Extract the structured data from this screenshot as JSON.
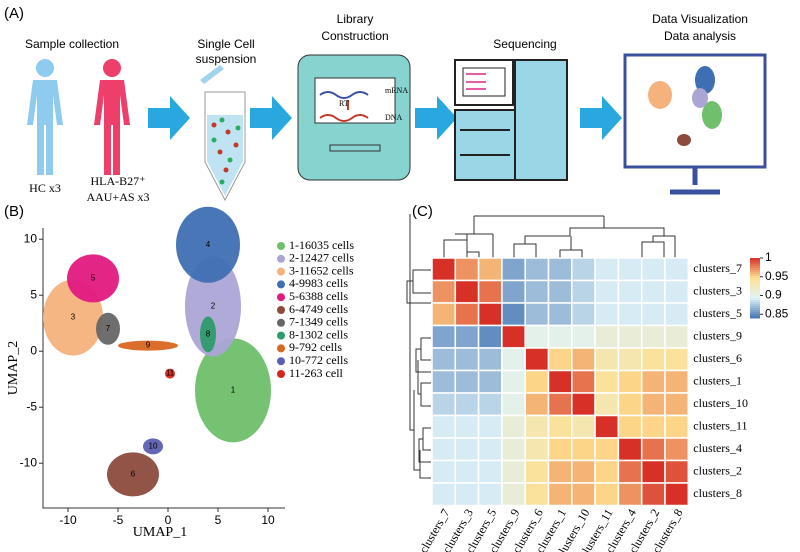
{
  "panel_labels": [
    "(A)",
    "(B)",
    "(C)"
  ],
  "workflow": {
    "sample": {
      "title": "Sample collection",
      "hc": "HC x3",
      "patient": [
        "HLA-B27⁺",
        "AAU+AS x3"
      ]
    },
    "suspension": [
      "Single Cell",
      "suspension"
    ],
    "library": {
      "title": [
        "Library",
        "Construction"
      ],
      "mrna": "mRNA",
      "rt": "RT",
      "dna": "DNA"
    },
    "sequencing": "Sequencing",
    "analysis": [
      "Data Visualization",
      "Data analysis"
    ]
  },
  "chart_data": [
    {
      "type": "scatter",
      "xlabel": "UMAP_1",
      "ylabel": "UMAP_2",
      "xlim": [
        -12.5,
        11.7
      ],
      "ylim": [
        -14,
        11
      ],
      "xticks": [
        -10,
        -5,
        0,
        5,
        10
      ],
      "yticks": [
        10,
        5,
        0,
        -5,
        -10
      ],
      "clusters": [
        {
          "name": "1-16035 cells",
          "label": "1",
          "color": "#6fbf6c",
          "x": 6.5,
          "y": -3.5
        },
        {
          "name": "2-12427 cells",
          "label": "2",
          "color": "#aba5d6",
          "x": 4.5,
          "y": 4
        },
        {
          "name": "3-11652 cells",
          "label": "3",
          "color": "#f5b27c",
          "x": -9.5,
          "y": 3
        },
        {
          "name": "4-9983 cells",
          "label": "4",
          "color": "#3f6fb2",
          "x": 4,
          "y": 9.5
        },
        {
          "name": "5-6388 cells",
          "label": "5",
          "color": "#e2197f",
          "x": -7.5,
          "y": 6.5
        },
        {
          "name": "6-4749 cells",
          "label": "6",
          "color": "#8c4b3d",
          "x": -3.5,
          "y": -11
        },
        {
          "name": "7-1349 cells",
          "label": "7",
          "color": "#666666",
          "x": -6,
          "y": 2
        },
        {
          "name": "8-1302 cells",
          "label": "8",
          "color": "#2f9a6b",
          "x": 4,
          "y": 1.5
        },
        {
          "name": "9-792 cells",
          "label": "9",
          "color": "#d8661f",
          "x": -2,
          "y": 0.5
        },
        {
          "name": "10-772 cells",
          "label": "10",
          "color": "#5b5fb1",
          "x": -1.5,
          "y": -8.5
        },
        {
          "name": "11-263 cell",
          "label": "11",
          "color": "#d5261e",
          "x": 0.2,
          "y": -2
        }
      ]
    },
    {
      "type": "heatmap",
      "categories": [
        "clusters_7",
        "clusters_3",
        "clusters_5",
        "clusters_9",
        "clusters_6",
        "clusters_1",
        "clusters_10",
        "clusters_11",
        "clusters_4",
        "clusters_2",
        "clusters_8"
      ],
      "matrix": [
        [
          1,
          0.97,
          0.96,
          0.86,
          0.87,
          0.87,
          0.88,
          0.89,
          0.89,
          0.89,
          0.89
        ],
        [
          0.97,
          1,
          0.98,
          0.86,
          0.87,
          0.87,
          0.88,
          0.89,
          0.89,
          0.89,
          0.89
        ],
        [
          0.96,
          0.98,
          1,
          0.85,
          0.87,
          0.87,
          0.88,
          0.89,
          0.89,
          0.89,
          0.89
        ],
        [
          0.86,
          0.86,
          0.85,
          1,
          0.9,
          0.9,
          0.9,
          0.91,
          0.91,
          0.91,
          0.91
        ],
        [
          0.87,
          0.87,
          0.87,
          0.9,
          1,
          0.95,
          0.96,
          0.93,
          0.93,
          0.94,
          0.94
        ],
        [
          0.87,
          0.87,
          0.87,
          0.9,
          0.95,
          1,
          0.98,
          0.94,
          0.95,
          0.96,
          0.96
        ],
        [
          0.88,
          0.88,
          0.88,
          0.9,
          0.96,
          0.98,
          1,
          0.93,
          0.95,
          0.96,
          0.96
        ],
        [
          0.89,
          0.89,
          0.89,
          0.91,
          0.93,
          0.94,
          0.93,
          1,
          0.95,
          0.95,
          0.95
        ],
        [
          0.89,
          0.89,
          0.89,
          0.91,
          0.93,
          0.95,
          0.95,
          0.95,
          1,
          0.98,
          0.97
        ],
        [
          0.89,
          0.89,
          0.89,
          0.91,
          0.94,
          0.96,
          0.96,
          0.95,
          0.98,
          1,
          0.99
        ],
        [
          0.89,
          0.89,
          0.89,
          0.91,
          0.94,
          0.96,
          0.96,
          0.95,
          0.97,
          0.99,
          1
        ]
      ],
      "clim": [
        0.84,
        1
      ],
      "cticks": [
        1,
        0.95,
        0.9,
        0.85
      ],
      "colors": [
        "#4575b4",
        "#e0f3f8",
        "#fee090",
        "#d73027"
      ]
    }
  ]
}
